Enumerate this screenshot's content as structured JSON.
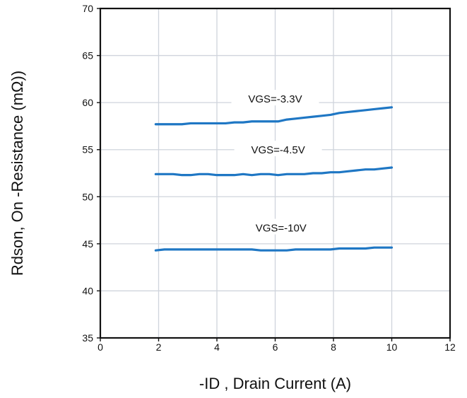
{
  "chart_data": {
    "type": "line",
    "xlabel": "-ID , Drain Current (A)",
    "ylabel": "Rdson, On -Resistance (mΩ))",
    "xlim": [
      0,
      12
    ],
    "ylim": [
      35,
      70
    ],
    "xticks": [
      0,
      2,
      4,
      6,
      8,
      10,
      12
    ],
    "yticks": [
      35,
      40,
      45,
      50,
      55,
      60,
      65,
      70
    ],
    "xtick_labels": [
      "0",
      "2",
      "4",
      "6",
      "8",
      "10",
      "12"
    ],
    "ytick_labels": [
      "35",
      "40",
      "45",
      "50",
      "55",
      "60",
      "65",
      "70"
    ],
    "grid": true,
    "series": [
      {
        "label": "VGS=-3.3V",
        "label_anchor": [
          6.0,
          60.3
        ],
        "color": "#1f77c4",
        "x": [
          1.9,
          2.2,
          2.5,
          2.8,
          3.1,
          3.4,
          3.7,
          4.0,
          4.3,
          4.6,
          4.9,
          5.2,
          5.5,
          5.8,
          6.1,
          6.4,
          6.7,
          7.0,
          7.3,
          7.6,
          7.9,
          8.2,
          8.5,
          8.8,
          9.1,
          9.4,
          9.7,
          10.0
        ],
        "y": [
          57.7,
          57.7,
          57.7,
          57.7,
          57.8,
          57.8,
          57.8,
          57.8,
          57.8,
          57.9,
          57.9,
          58.0,
          58.0,
          58.0,
          58.0,
          58.2,
          58.3,
          58.4,
          58.5,
          58.6,
          58.7,
          58.9,
          59.0,
          59.1,
          59.2,
          59.3,
          59.4,
          59.5
        ]
      },
      {
        "label": "VGS=-4.5V",
        "label_anchor": [
          6.1,
          54.9
        ],
        "color": "#1f77c4",
        "x": [
          1.9,
          2.2,
          2.5,
          2.8,
          3.1,
          3.4,
          3.7,
          4.0,
          4.3,
          4.6,
          4.9,
          5.2,
          5.5,
          5.8,
          6.1,
          6.4,
          6.7,
          7.0,
          7.3,
          7.6,
          7.9,
          8.2,
          8.5,
          8.8,
          9.1,
          9.4,
          9.7,
          10.0
        ],
        "y": [
          52.4,
          52.4,
          52.4,
          52.3,
          52.3,
          52.4,
          52.4,
          52.3,
          52.3,
          52.3,
          52.4,
          52.3,
          52.4,
          52.4,
          52.3,
          52.4,
          52.4,
          52.4,
          52.5,
          52.5,
          52.6,
          52.6,
          52.7,
          52.8,
          52.9,
          52.9,
          53.0,
          53.1
        ]
      },
      {
        "label": "VGS=-10V",
        "label_anchor": [
          6.2,
          46.6
        ],
        "color": "#1f77c4",
        "x": [
          1.9,
          2.2,
          2.5,
          2.8,
          3.1,
          3.4,
          3.7,
          4.0,
          4.3,
          4.6,
          4.9,
          5.2,
          5.5,
          5.8,
          6.1,
          6.4,
          6.7,
          7.0,
          7.3,
          7.6,
          7.9,
          8.2,
          8.5,
          8.8,
          9.1,
          9.4,
          9.7,
          10.0
        ],
        "y": [
          44.3,
          44.4,
          44.4,
          44.4,
          44.4,
          44.4,
          44.4,
          44.4,
          44.4,
          44.4,
          44.4,
          44.4,
          44.3,
          44.3,
          44.3,
          44.3,
          44.4,
          44.4,
          44.4,
          44.4,
          44.4,
          44.5,
          44.5,
          44.5,
          44.5,
          44.6,
          44.6,
          44.6
        ]
      }
    ]
  }
}
